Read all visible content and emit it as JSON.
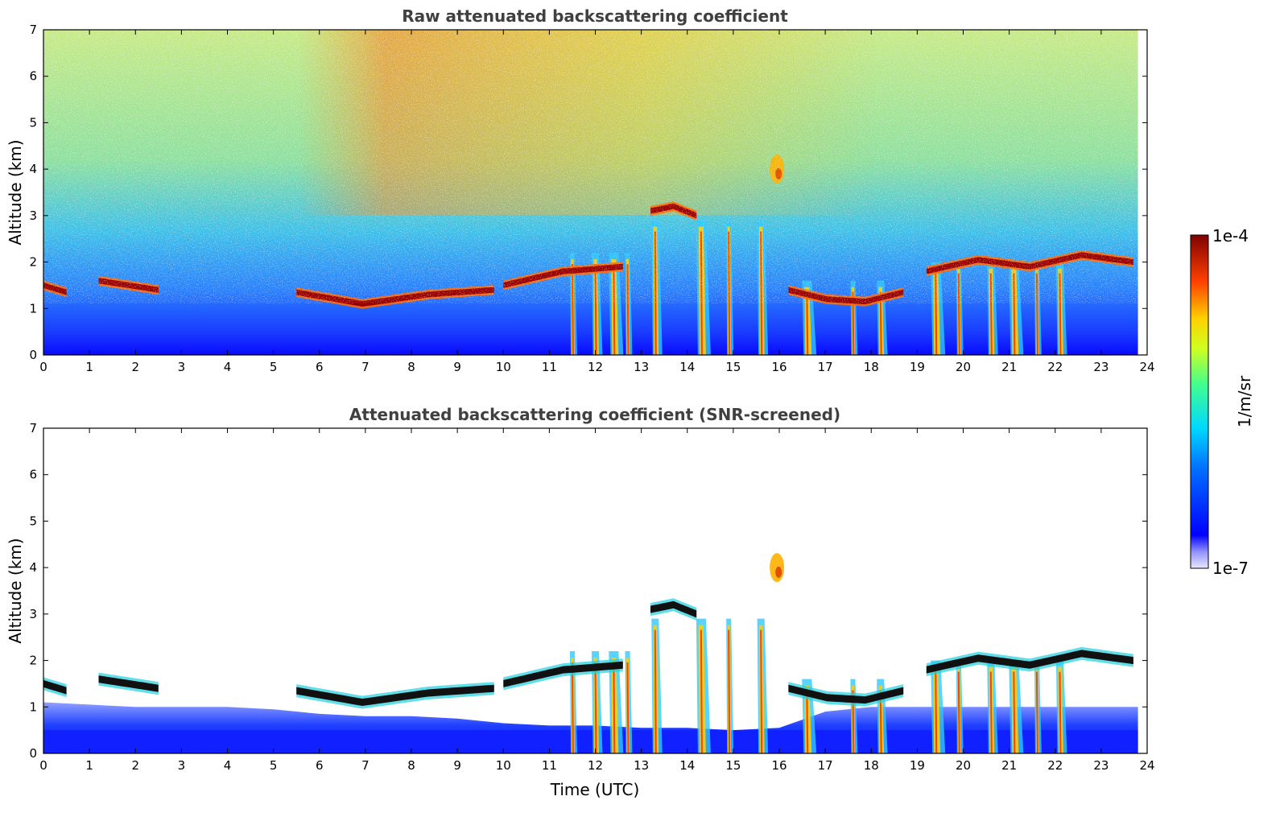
{
  "chart_data": [
    {
      "type": "heatmap",
      "title": "Raw attenuated backscattering coefficient",
      "xlabel": "",
      "ylabel": "Altitude (km)",
      "xlim": [
        0,
        24
      ],
      "ylim": [
        0,
        7
      ],
      "xticks": [
        "0",
        "1",
        "2",
        "3",
        "4",
        "5",
        "6",
        "7",
        "8",
        "9",
        "10",
        "11",
        "12",
        "13",
        "14",
        "15",
        "16",
        "17",
        "18",
        "19",
        "20",
        "21",
        "22",
        "23",
        "24"
      ],
      "yticks": [
        "0",
        "1",
        "2",
        "3",
        "4",
        "5",
        "6",
        "7"
      ],
      "data_end_time": 23.8,
      "layers": [
        {
          "start": 0.0,
          "end": 0.5,
          "alt": [
            1.5,
            1.35
          ]
        },
        {
          "start": 1.2,
          "end": 2.5,
          "alt": [
            1.6,
            1.4
          ]
        },
        {
          "start": 5.5,
          "end": 9.8,
          "alt": [
            1.35,
            1.1,
            1.3,
            1.4
          ]
        },
        {
          "start": 10.0,
          "end": 12.6,
          "alt": [
            1.5,
            1.8,
            1.9
          ]
        },
        {
          "start": 13.2,
          "end": 14.2,
          "alt": [
            3.1,
            3.2,
            3.0
          ]
        },
        {
          "start": 16.2,
          "end": 18.7,
          "alt": [
            1.4,
            1.2,
            1.15,
            1.35
          ]
        },
        {
          "start": 19.2,
          "end": 23.7,
          "alt": [
            1.8,
            2.05,
            1.9,
            2.15,
            2.0
          ]
        }
      ],
      "fall_streaks": [
        11.5,
        12.0,
        12.4,
        12.7,
        13.3,
        14.3,
        14.9,
        15.6,
        16.6,
        17.6,
        18.2,
        19.4,
        19.9,
        20.6,
        21.1,
        21.6,
        22.1
      ],
      "elevated_feature": {
        "time": 15.95,
        "alt": 4.0
      }
    },
    {
      "type": "heatmap",
      "title": "Attenuated backscattering coefficient (SNR-screened)",
      "xlabel": "Time (UTC)",
      "ylabel": "Altitude (km)",
      "xlim": [
        0,
        24
      ],
      "ylim": [
        0,
        7
      ],
      "xticks": [
        "0",
        "1",
        "2",
        "3",
        "4",
        "5",
        "6",
        "7",
        "8",
        "9",
        "10",
        "11",
        "12",
        "13",
        "14",
        "15",
        "16",
        "17",
        "18",
        "19",
        "20",
        "21",
        "22",
        "23",
        "24"
      ],
      "yticks": [
        "0",
        "1",
        "2",
        "3",
        "4",
        "5",
        "6",
        "7"
      ]
    }
  ],
  "colorbar": {
    "label": "1/m/sr",
    "max_label": "1e-4",
    "min_label": "1e-7",
    "colormap": "jet",
    "scale": "log"
  }
}
